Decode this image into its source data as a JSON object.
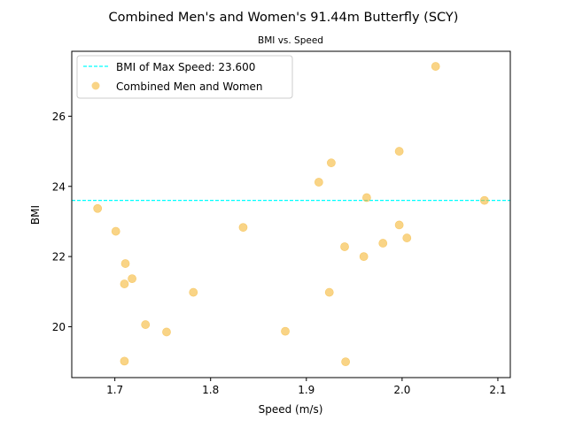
{
  "chart_data": {
    "type": "scatter",
    "title": "Combined Men's and Women's 91.44m Butterfly (SCY)",
    "subtitle": "BMI vs. Speed",
    "xlabel": "Speed (m/s)",
    "ylabel": "BMI",
    "xlim": [
      1.655,
      2.113
    ],
    "ylim": [
      18.55,
      27.85
    ],
    "x_ticks": [
      1.7,
      1.8,
      1.9,
      2.0,
      2.1
    ],
    "x_tick_labels": [
      "1.7",
      "1.8",
      "1.9",
      "2.0",
      "2.1"
    ],
    "y_ticks": [
      20,
      22,
      24,
      26
    ],
    "y_tick_labels": [
      "20",
      "22",
      "24",
      "26"
    ],
    "grid": false,
    "legend_position": "top-left",
    "reference_line": {
      "label": "BMI of Max Speed: 23.600",
      "y": 23.6,
      "color": "#00ffff",
      "style": "dashed"
    },
    "series": [
      {
        "name": "Combined Men and Women",
        "color": "#f5b735",
        "points": [
          {
            "x": 1.682,
            "y": 23.37
          },
          {
            "x": 1.701,
            "y": 22.72
          },
          {
            "x": 1.711,
            "y": 21.8
          },
          {
            "x": 1.71,
            "y": 21.22
          },
          {
            "x": 1.718,
            "y": 21.37
          },
          {
            "x": 1.71,
            "y": 19.02
          },
          {
            "x": 1.732,
            "y": 20.06
          },
          {
            "x": 1.754,
            "y": 19.85
          },
          {
            "x": 1.782,
            "y": 20.98
          },
          {
            "x": 1.834,
            "y": 22.83
          },
          {
            "x": 1.878,
            "y": 19.87
          },
          {
            "x": 1.913,
            "y": 24.12
          },
          {
            "x": 1.926,
            "y": 24.67
          },
          {
            "x": 1.924,
            "y": 20.98
          },
          {
            "x": 1.94,
            "y": 22.28
          },
          {
            "x": 1.941,
            "y": 19.0
          },
          {
            "x": 1.96,
            "y": 22.0
          },
          {
            "x": 1.963,
            "y": 23.68
          },
          {
            "x": 1.98,
            "y": 22.38
          },
          {
            "x": 1.997,
            "y": 25.0
          },
          {
            "x": 1.997,
            "y": 22.9
          },
          {
            "x": 2.005,
            "y": 22.53
          },
          {
            "x": 2.035,
            "y": 27.42
          },
          {
            "x": 2.086,
            "y": 23.6
          }
        ]
      }
    ]
  }
}
